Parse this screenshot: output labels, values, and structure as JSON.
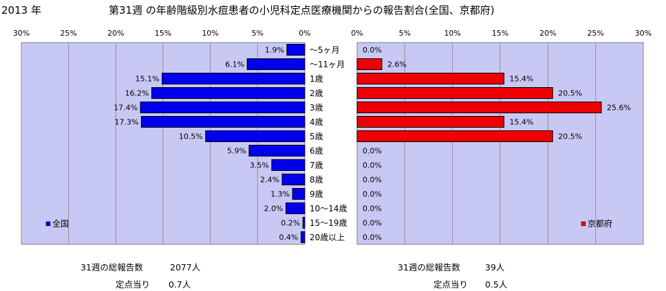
{
  "header": {
    "year": "2013 年",
    "title": "第31週 の年齢階級別水痘患者の小児科定点医療機関からの報告割合(全国、京都府)"
  },
  "chart_data": {
    "type": "bar",
    "categories": [
      "～5ヶ月",
      "～11ヶ月",
      "1歳",
      "2歳",
      "3歳",
      "4歳",
      "5歳",
      "6歳",
      "7歳",
      "8歳",
      "9歳",
      "10～14歳",
      "15～19歳",
      "20歳以上"
    ],
    "xlim": [
      0,
      30
    ],
    "x_ticks": [
      "0%",
      "5%",
      "10%",
      "15%",
      "20%",
      "25%",
      "30%"
    ],
    "grid": true,
    "series": [
      {
        "name": "全国",
        "color": "#0000ee",
        "values": [
          1.9,
          6.1,
          15.1,
          16.2,
          17.4,
          17.3,
          10.5,
          5.9,
          3.5,
          2.4,
          1.3,
          2.0,
          0.2,
          0.4
        ],
        "labels": [
          "1.9%",
          "6.1%",
          "15.1%",
          "16.2%",
          "17.4%",
          "17.3%",
          "10.5%",
          "5.9%",
          "3.5%",
          "2.4%",
          "1.3%",
          "2.0%",
          "0.2%",
          "0.4%"
        ]
      },
      {
        "name": "京都府",
        "color": "#ee0000",
        "values": [
          0.0,
          2.6,
          15.4,
          20.5,
          25.6,
          15.4,
          20.5,
          0.0,
          0.0,
          0.0,
          0.0,
          0.0,
          0.0,
          0.0
        ],
        "labels": [
          "0.0%",
          "2.6%",
          "15.4%",
          "20.5%",
          "25.6%",
          "15.4%",
          "20.5%",
          "0.0%",
          "0.0%",
          "0.0%",
          "0.0%",
          "0.0%",
          "0.0%",
          "0.0%"
        ]
      }
    ],
    "legend": {
      "national": "全国",
      "kyoto": "京都府"
    },
    "plot_bg": "#c8c8f4"
  },
  "stats": {
    "national_total_label": "31週の総報告数",
    "national_total_value": "2077人",
    "national_per_label": "定点当り",
    "national_per_value": "0.7人",
    "kyoto_total_label": "31週の総報告数",
    "kyoto_total_value": "39人",
    "kyoto_per_label": "定点当り",
    "kyoto_per_value": "0.5人"
  }
}
